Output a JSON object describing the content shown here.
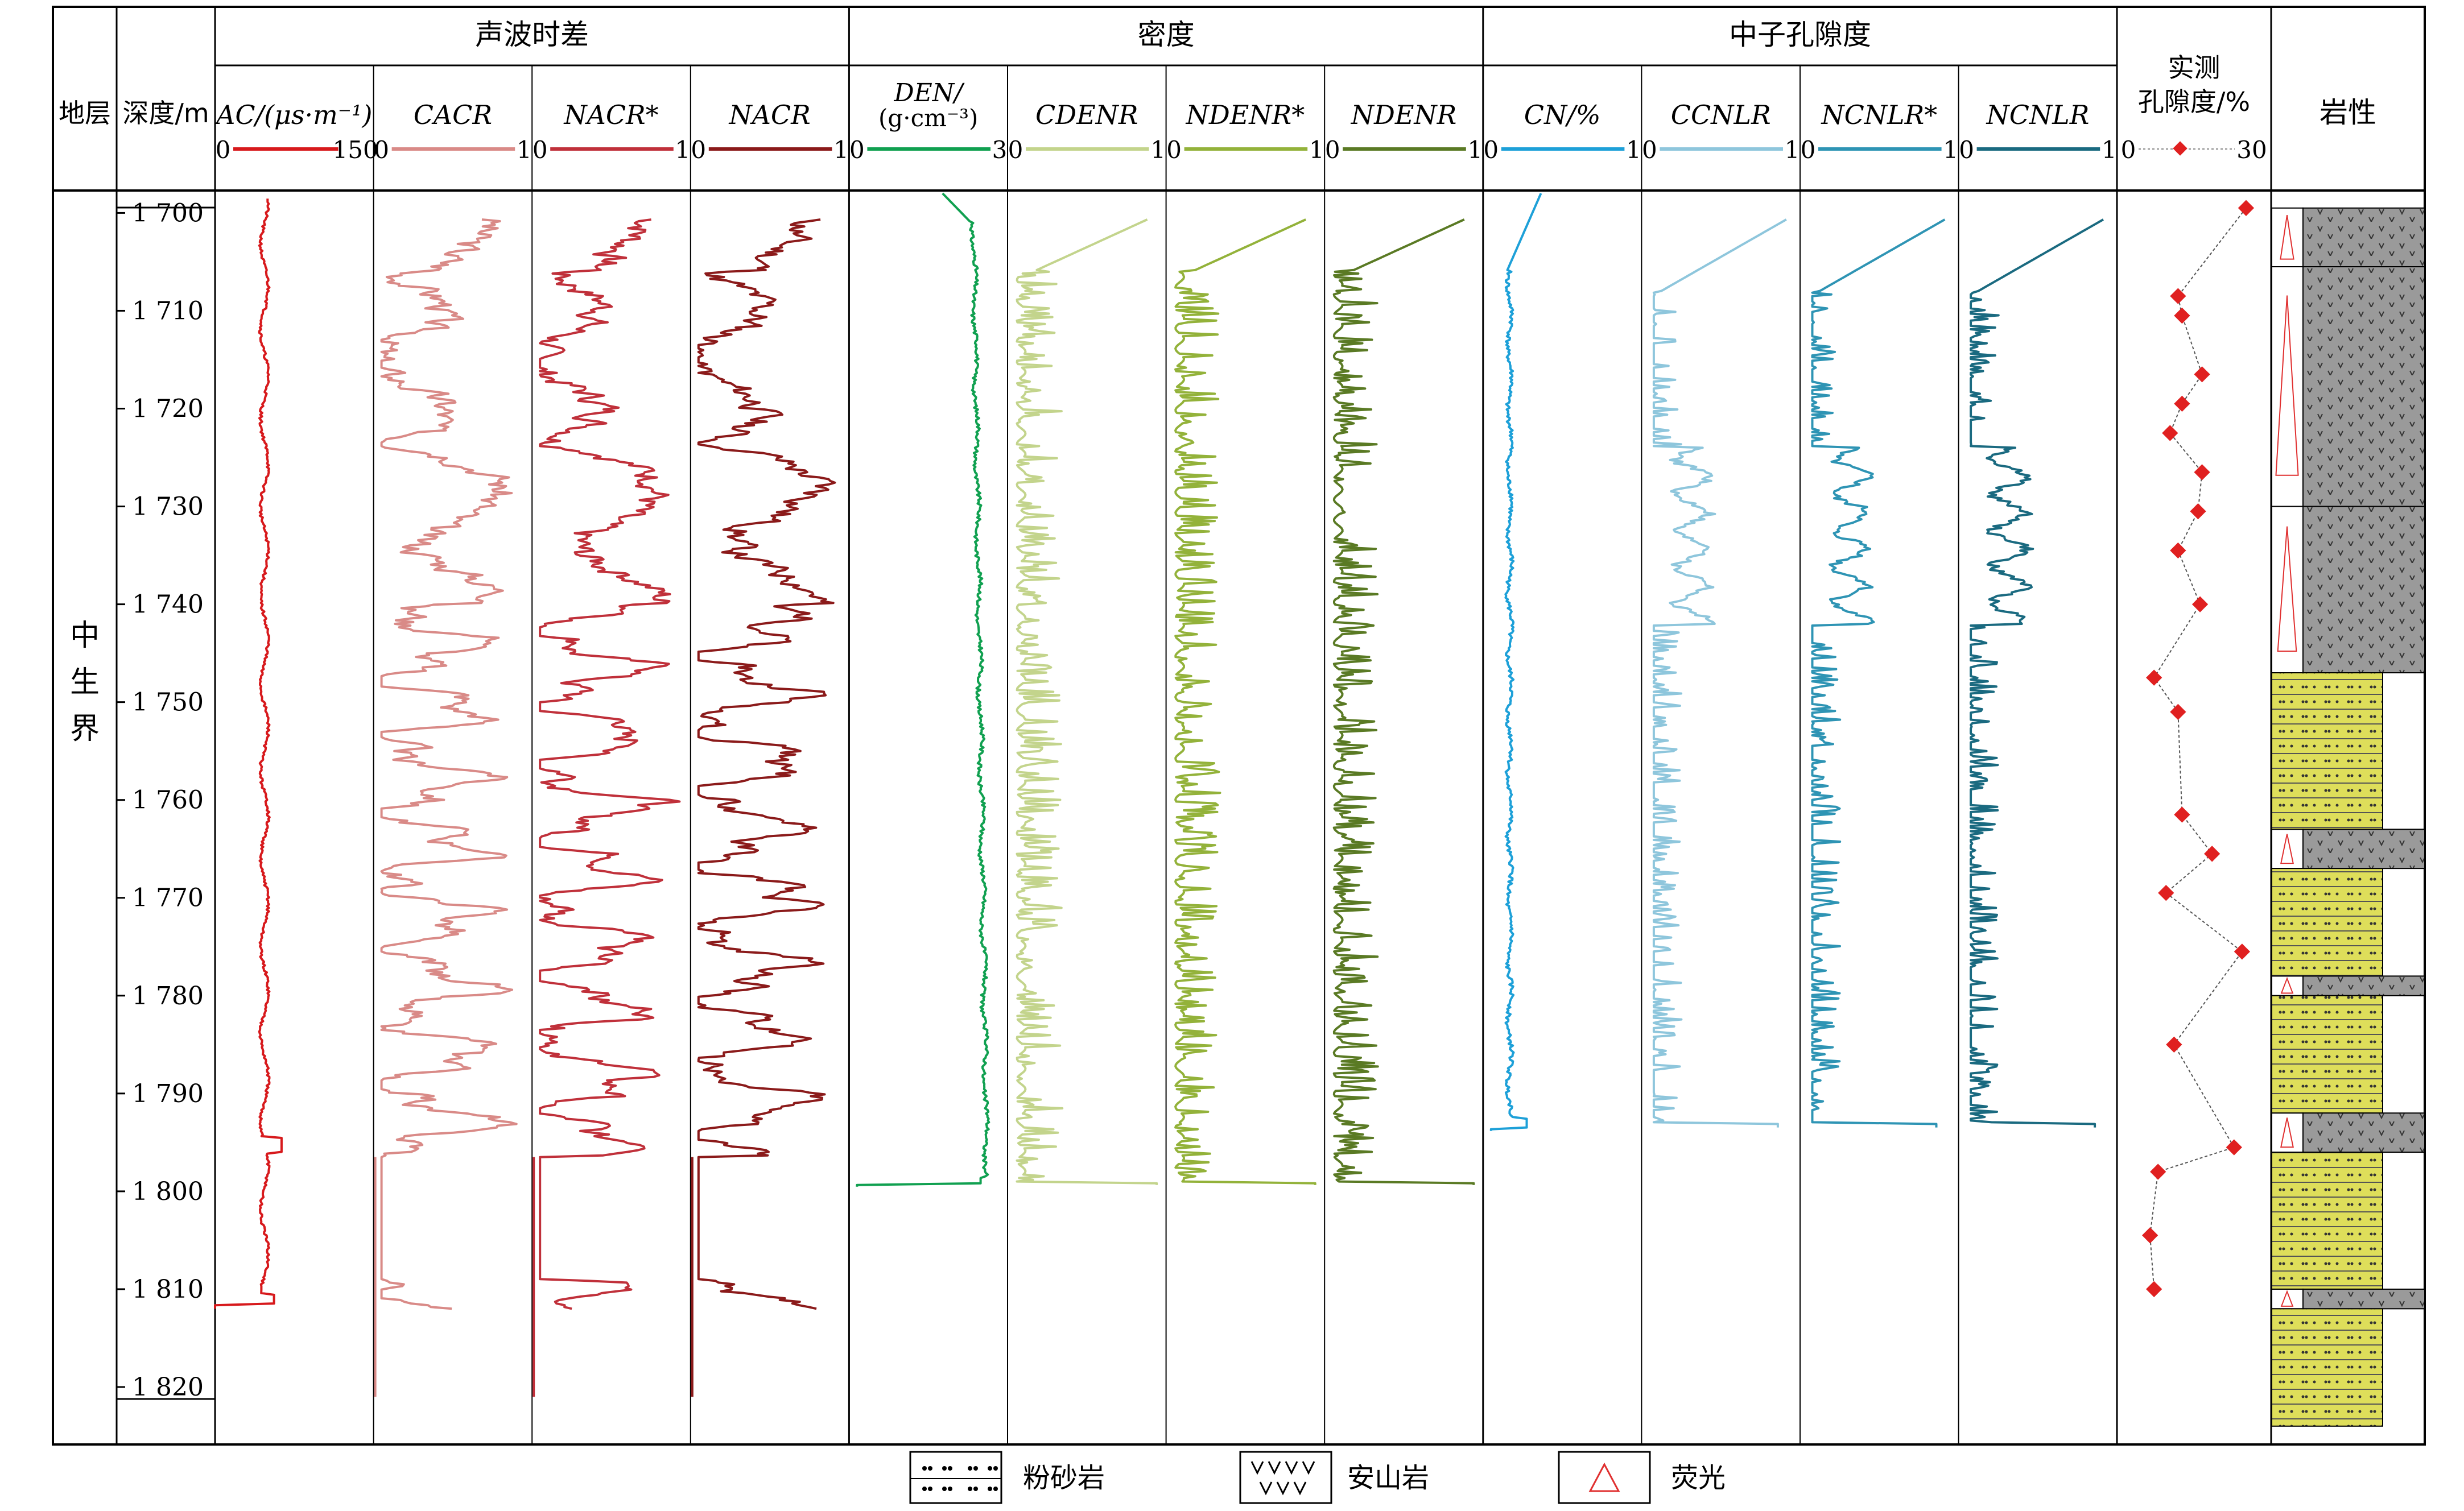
{
  "chart_data": {
    "type": "line",
    "title": "",
    "stratum": {
      "header": "地层",
      "label": "中生界"
    },
    "depth": {
      "header": "深度/m",
      "range": [
        1698,
        1825
      ],
      "ticks": [
        1700,
        1710,
        1720,
        1730,
        1740,
        1750,
        1760,
        1770,
        1780,
        1790,
        1800,
        1810,
        1820
      ],
      "tick_labels": [
        "1 700",
        "1 710",
        "1 720",
        "1 730",
        "1 740",
        "1 750",
        "1 760",
        "1 770",
        "1 780",
        "1 790",
        "1 800",
        "1 810",
        "1 820"
      ]
    },
    "groups": [
      {
        "title": "声波时差",
        "tracks": [
          0,
          1,
          2,
          3
        ]
      },
      {
        "title": "密度",
        "tracks": [
          4,
          5,
          6,
          7
        ]
      },
      {
        "title": "中子孔隙度",
        "tracks": [
          8,
          9,
          10,
          11
        ]
      }
    ],
    "tracks": [
      {
        "name": "AC/(μs·m⁻¹)",
        "min_label": "0",
        "max_label": "150",
        "min": 0,
        "max": 150,
        "color": "#d7191c",
        "kind": "ac"
      },
      {
        "name": "CACR",
        "min_label": "0",
        "max_label": "1",
        "min": 0,
        "max": 1,
        "color": "#d98a87",
        "kind": "ratio",
        "seed": 3
      },
      {
        "name": "NACR*",
        "min_label": "0",
        "max_label": "1",
        "min": 0,
        "max": 1,
        "color": "#c0303a",
        "kind": "ratio",
        "seed": 7
      },
      {
        "name": "NACR",
        "min_label": "0",
        "max_label": "1",
        "min": 0,
        "max": 1,
        "color": "#8b1a1a",
        "kind": "ratio",
        "seed": 11
      },
      {
        "name": "DEN/",
        "name2": "(g·cm⁻³)",
        "min_label": "0",
        "max_label": "3",
        "min": 0,
        "max": 3,
        "color": "#10a050",
        "kind": "den"
      },
      {
        "name": "CDENR",
        "min_label": "0",
        "max_label": "1",
        "min": 0,
        "max": 1,
        "color": "#c3d48c",
        "kind": "dratio",
        "seed": 5
      },
      {
        "name": "NDENR*",
        "min_label": "0",
        "max_label": "1",
        "min": 0,
        "max": 1,
        "color": "#93b23a",
        "kind": "dratio",
        "seed": 9
      },
      {
        "name": "NDENR",
        "min_label": "0",
        "max_label": "1",
        "min": 0,
        "max": 1,
        "color": "#5a7a24",
        "kind": "dratio",
        "seed": 13
      },
      {
        "name": "CN/%",
        "min_label": "0",
        "max_label": "1",
        "min": 0,
        "max": 1,
        "color": "#1da0d8",
        "kind": "cn"
      },
      {
        "name": "CCNLR",
        "min_label": "0",
        "max_label": "1",
        "min": 0,
        "max": 1,
        "color": "#8ec6dc",
        "kind": "nratio",
        "seed": 4
      },
      {
        "name": "NCNLR*",
        "min_label": "0",
        "max_label": "1",
        "min": 0,
        "max": 1,
        "color": "#2e94b4",
        "kind": "nratio",
        "seed": 8
      },
      {
        "name": "NCNLR",
        "min_label": "0",
        "max_label": "1",
        "min": 0,
        "max": 1,
        "color": "#1a6a80",
        "kind": "nratio",
        "seed": 12
      }
    ],
    "porosity": {
      "title1": "实测",
      "title2": "孔隙度/%",
      "min_label": "0",
      "max_label": "30",
      "min": 0,
      "max": 30,
      "color": "#e02020",
      "depths": [
        1699.5,
        1708.5,
        1710.5,
        1716.5,
        1719.5,
        1722.5,
        1726.5,
        1730.5,
        1734.5,
        1740.0,
        1747.5,
        1751.0,
        1761.5,
        1765.5,
        1769.5,
        1775.5,
        1785.0,
        1795.5,
        1798.0,
        1804.5,
        1810.0
      ],
      "values": [
        28.0,
        11.0,
        12.0,
        17.0,
        12.0,
        9.0,
        17.0,
        16.0,
        11.0,
        16.5,
        5.0,
        11.0,
        12.0,
        19.5,
        8.0,
        27.0,
        10.0,
        25.0,
        6.0,
        4.0,
        5.0
      ]
    },
    "lithology": {
      "header": "岩性",
      "layers": [
        {
          "top": 1699.5,
          "bottom": 1705.5,
          "type": "andesite",
          "fluor": true
        },
        {
          "top": 1705.5,
          "bottom": 1730.0,
          "type": "andesite",
          "fluor": true
        },
        {
          "top": 1730.0,
          "bottom": 1747.0,
          "type": "andesite",
          "fluor": true
        },
        {
          "top": 1747.0,
          "bottom": 1763.0,
          "type": "siltstone",
          "fluor": false
        },
        {
          "top": 1763.0,
          "bottom": 1767.0,
          "type": "andesite",
          "fluor": true
        },
        {
          "top": 1767.0,
          "bottom": 1778.0,
          "type": "siltstone",
          "fluor": false
        },
        {
          "top": 1778.0,
          "bottom": 1780.0,
          "type": "andesite",
          "fluor": true
        },
        {
          "top": 1780.0,
          "bottom": 1792.0,
          "type": "siltstone",
          "fluor": false
        },
        {
          "top": 1792.0,
          "bottom": 1796.0,
          "type": "andesite",
          "fluor": true
        },
        {
          "top": 1796.0,
          "bottom": 1810.0,
          "type": "siltstone",
          "fluor": false
        },
        {
          "top": 1810.0,
          "bottom": 1812.0,
          "type": "andesite",
          "fluor": true
        },
        {
          "top": 1812.0,
          "bottom": 1824.0,
          "type": "siltstone",
          "fluor": false
        }
      ]
    },
    "legend": [
      {
        "key": "siltstone",
        "label": "粉砂岩"
      },
      {
        "key": "andesite",
        "label": "安山岩"
      },
      {
        "key": "fluor",
        "label": "荧光"
      }
    ]
  }
}
